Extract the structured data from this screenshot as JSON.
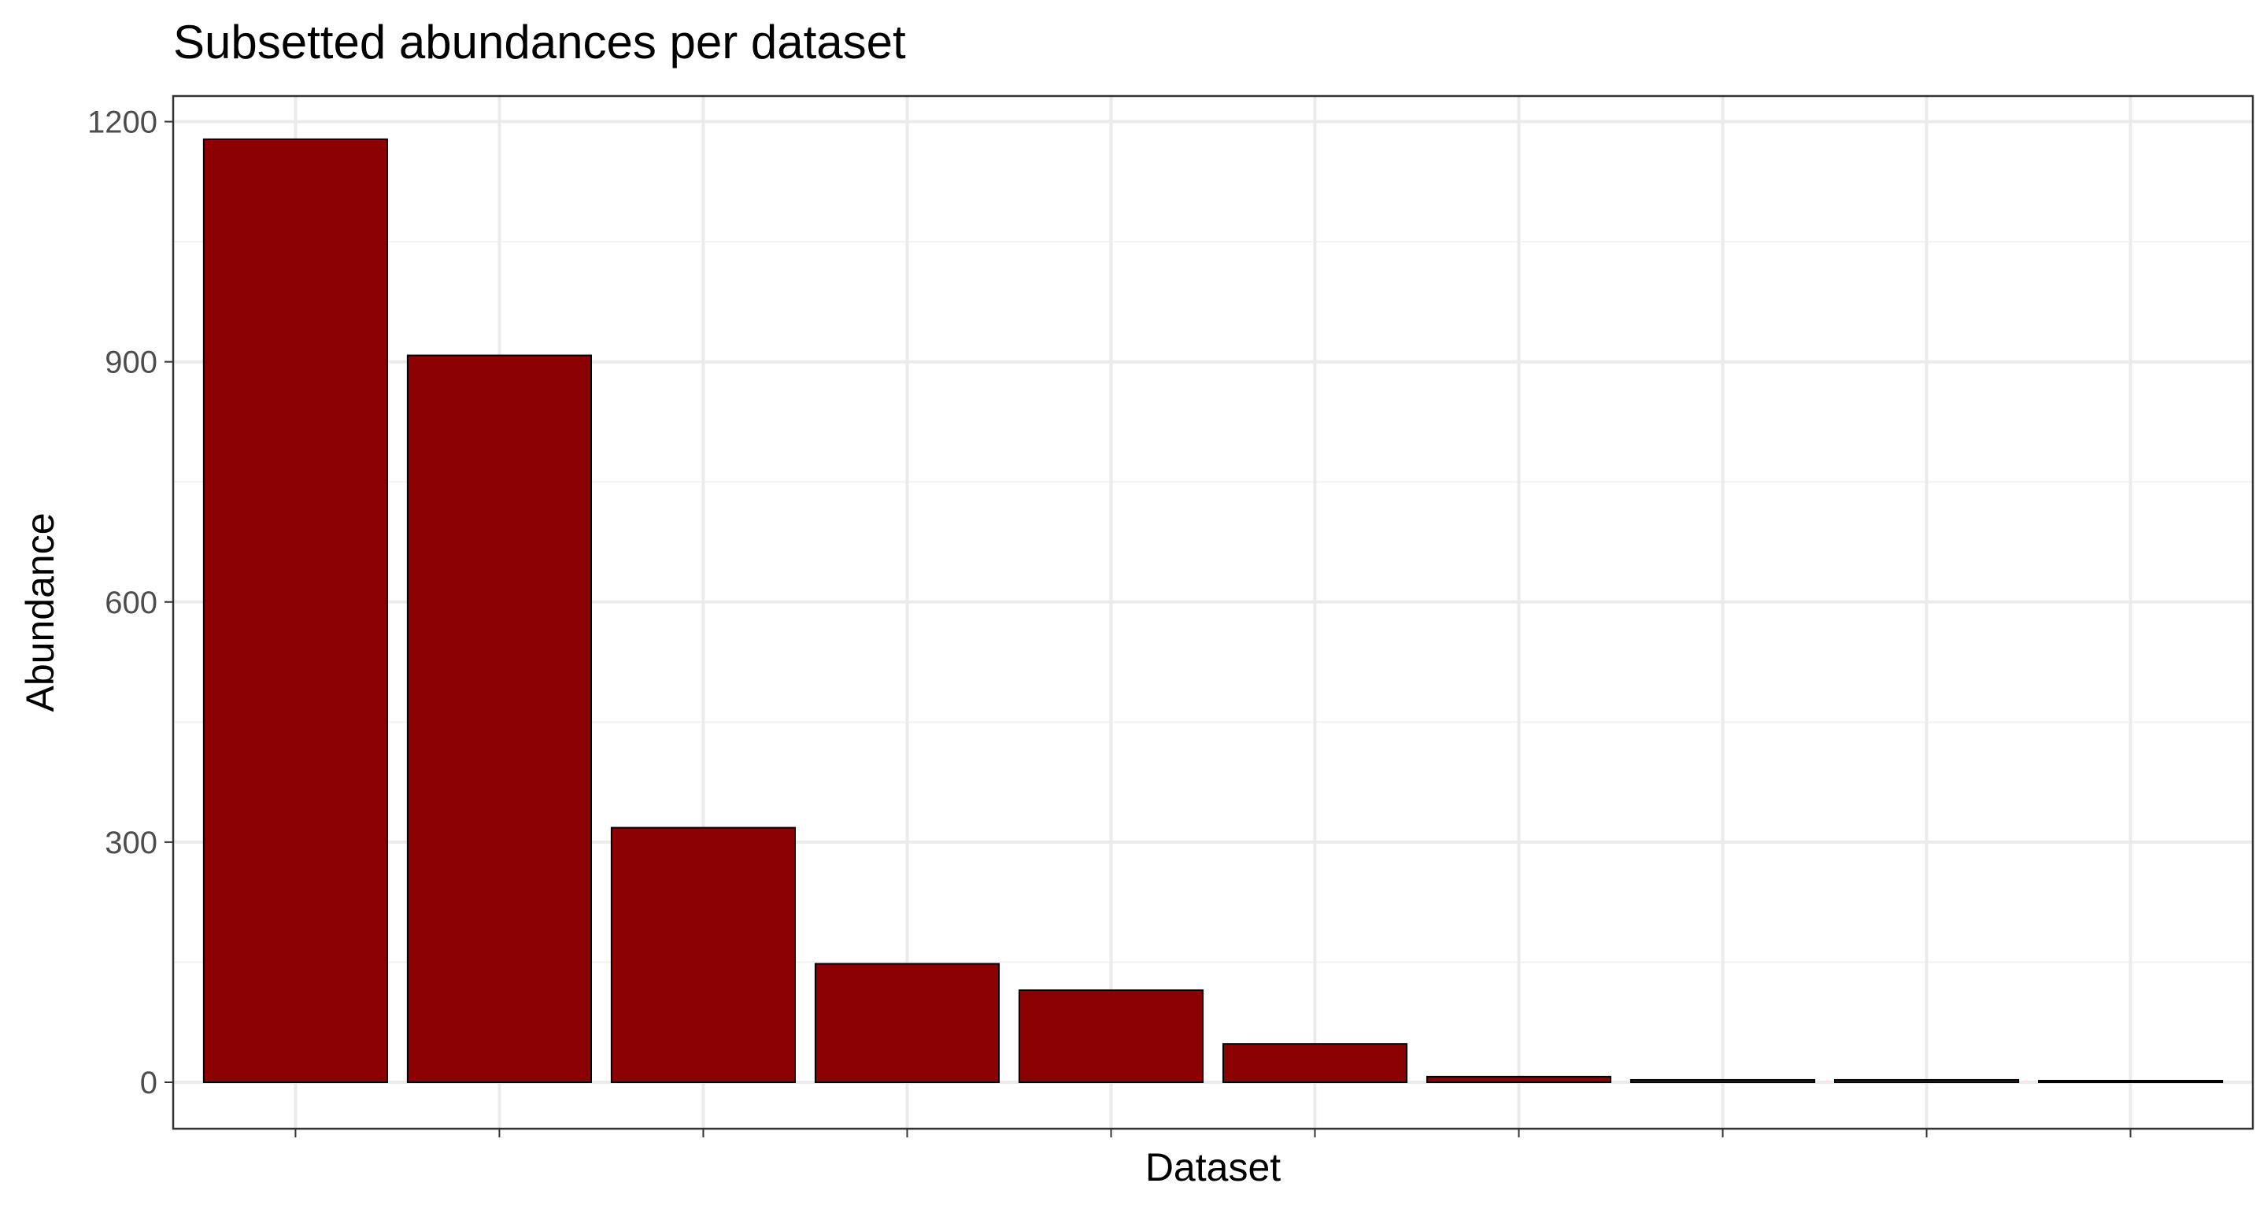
{
  "chart_data": {
    "type": "bar",
    "title": "Subsetted abundances per dataset",
    "xlabel": "Dataset",
    "ylabel": "Abundance",
    "categories": [
      "",
      "",
      "",
      "",
      "",
      "",
      "",
      "",
      "",
      ""
    ],
    "values": [
      1178,
      908,
      318,
      148,
      115,
      48,
      7,
      3,
      3,
      2
    ],
    "ylim": [
      -58,
      1232
    ],
    "yticks": [
      0,
      300,
      600,
      900,
      1200
    ],
    "yticks_minor": [
      150,
      450,
      750,
      1050
    ],
    "ytick_labels": [
      "0",
      "300",
      "600",
      "900",
      "1200"
    ],
    "grid": true,
    "legend": "none",
    "colors": {
      "bar_fill": "#8b0000",
      "bar_stroke": "#000000",
      "grid_major": "#ebebeb",
      "grid_minor": "#f2f2f2",
      "tick_text": "#4d4d4d"
    }
  }
}
